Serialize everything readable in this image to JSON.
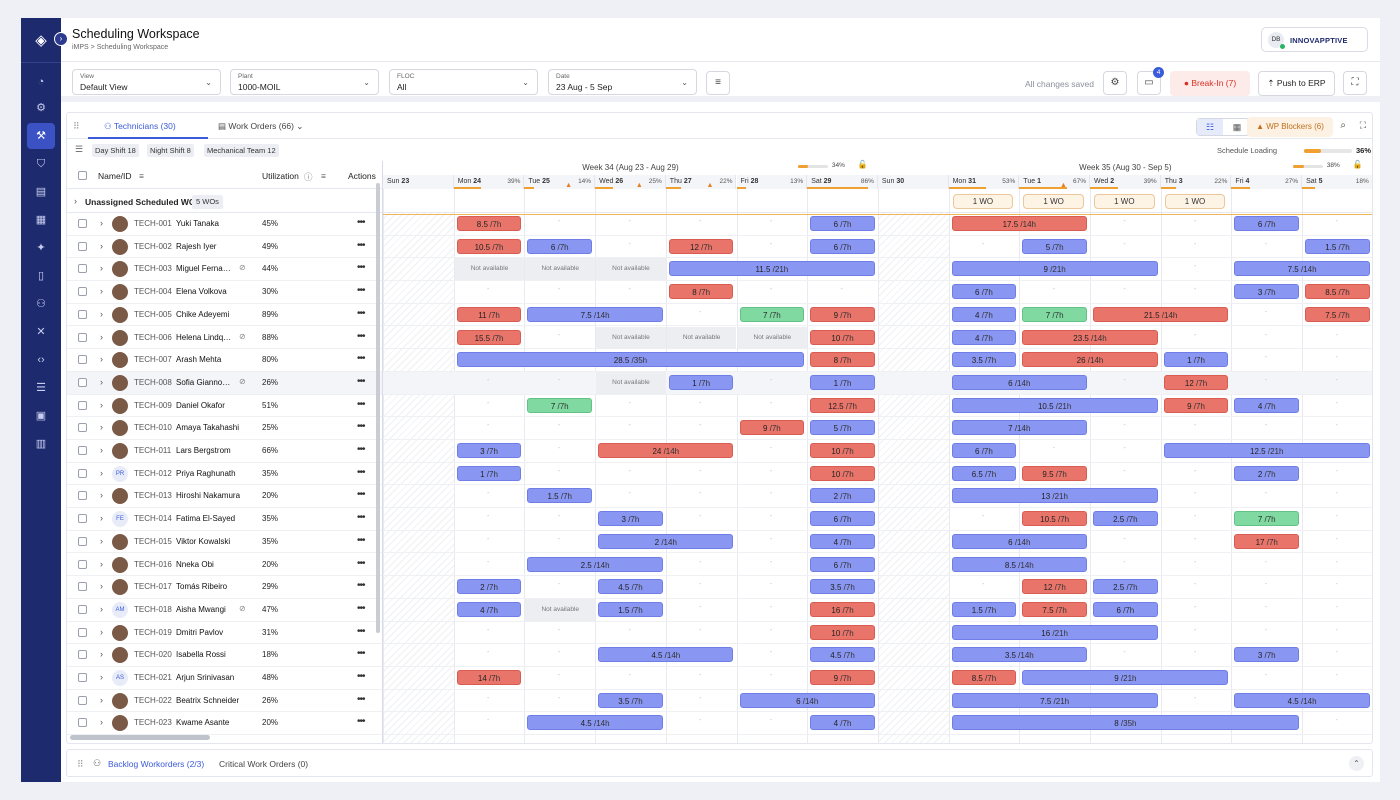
{
  "header": {
    "title": "Scheduling Workspace",
    "breadcrumb": "iMPS > Scheduling Workspace",
    "user_initials": "DB",
    "brand": "INNOVAPPTIVE"
  },
  "filters": {
    "view": {
      "label": "View",
      "value": "Default View"
    },
    "plant": {
      "label": "Plant",
      "value": "1000-MOIL"
    },
    "floc": {
      "label": "FLOC",
      "value": "All"
    },
    "date": {
      "label": "Date",
      "value": "23 Aug - 5 Sep"
    },
    "saved_text": "All changes saved",
    "messages_count": "4",
    "break_in": "Break-In (7)",
    "push_erp": "Push to ERP"
  },
  "tabs": {
    "technicians": "Technicians (30)",
    "work_orders": "Work Orders (66)",
    "wp_blockers": "WP Blockers (6)"
  },
  "chips": [
    "Day Shift 18",
    "Night Shift 8",
    "Mechanical Team 12"
  ],
  "schedule_loading": {
    "label": "Schedule Loading",
    "value": "36%",
    "fraction": 0.36
  },
  "columns": {
    "name": "Name/ID",
    "utilization": "Utilization",
    "actions": "Actions"
  },
  "unassigned": {
    "label": "Unassigned Scheduled WO",
    "badge": "5 WOs"
  },
  "weeks": [
    {
      "label": "Week 34 (Aug 23 - Aug 29)",
      "pct": "34%",
      "fraction": 0.34
    },
    {
      "label": "Week 35 (Aug 30 - Sep 5)",
      "pct": "38%",
      "fraction": 0.38
    }
  ],
  "days": [
    {
      "dow": "Sun",
      "d": "23",
      "pct": "",
      "warn": false,
      "weekend": true,
      "load": 0
    },
    {
      "dow": "Mon",
      "d": "24",
      "pct": "39%",
      "warn": false,
      "weekend": false,
      "load": 0.39
    },
    {
      "dow": "Tue",
      "d": "25",
      "pct": "14%",
      "warn": true,
      "weekend": false,
      "load": 0.14
    },
    {
      "dow": "Wed",
      "d": "26",
      "pct": "25%",
      "warn": true,
      "weekend": false,
      "load": 0.25
    },
    {
      "dow": "Thu",
      "d": "27",
      "pct": "22%",
      "warn": true,
      "weekend": false,
      "load": 0.22
    },
    {
      "dow": "Fri",
      "d": "28",
      "pct": "13%",
      "warn": false,
      "weekend": false,
      "load": 0.13
    },
    {
      "dow": "Sat",
      "d": "29",
      "pct": "86%",
      "warn": false,
      "weekend": false,
      "load": 0.86
    },
    {
      "dow": "Sun",
      "d": "30",
      "pct": "",
      "warn": false,
      "weekend": true,
      "load": 0
    },
    {
      "dow": "Mon",
      "d": "31",
      "pct": "53%",
      "warn": false,
      "weekend": false,
      "load": 0.53
    },
    {
      "dow": "Tue",
      "d": "1",
      "pct": "67%",
      "warn": true,
      "weekend": false,
      "load": 0.67
    },
    {
      "dow": "Wed",
      "d": "2",
      "pct": "39%",
      "warn": false,
      "weekend": false,
      "load": 0.39
    },
    {
      "dow": "Thu",
      "d": "3",
      "pct": "22%",
      "warn": false,
      "weekend": false,
      "load": 0.22
    },
    {
      "dow": "Fri",
      "d": "4",
      "pct": "27%",
      "warn": false,
      "weekend": false,
      "load": 0.27
    },
    {
      "dow": "Sat",
      "d": "5",
      "pct": "18%",
      "warn": false,
      "weekend": false,
      "load": 0.18
    }
  ],
  "unassigned_wo": [
    {
      "day": 8,
      "label": "1 WO"
    },
    {
      "day": 9,
      "label": "1 WO"
    },
    {
      "day": 10,
      "label": "1 WO"
    },
    {
      "day": 11,
      "label": "1 WO"
    }
  ],
  "technicians": [
    {
      "id": "TECH-001",
      "name": "Yuki Tanaka",
      "util": "45%",
      "nocal": false,
      "ini": "",
      "blocks": [
        [
          1,
          1,
          "8.5",
          "/7h",
          "r"
        ],
        [
          6,
          1,
          "6",
          "/7h",
          "b"
        ],
        [
          8,
          2,
          "17.5",
          "/14h",
          "r"
        ],
        [
          12,
          1,
          "6",
          "/7h",
          "b"
        ]
      ]
    },
    {
      "id": "TECH-002",
      "name": "Rajesh Iyer",
      "util": "49%",
      "nocal": false,
      "ini": "",
      "blocks": [
        [
          1,
          1,
          "10.5",
          "/7h",
          "r"
        ],
        [
          2,
          1,
          "6",
          "/7h",
          "b"
        ],
        [
          4,
          1,
          "12",
          "/7h",
          "r"
        ],
        [
          6,
          1,
          "6",
          "/7h",
          "b"
        ],
        [
          9,
          1,
          "5",
          "/7h",
          "b"
        ],
        [
          13,
          1,
          "1.5",
          "/7h",
          "b"
        ]
      ]
    },
    {
      "id": "TECH-003",
      "name": "Miguel Ferna…",
      "util": "44%",
      "nocal": true,
      "ini": "",
      "na": [
        1,
        2,
        3
      ],
      "blocks": [
        [
          4,
          3,
          "11.5",
          "/21h",
          "b"
        ],
        [
          8,
          3,
          "9",
          "/21h",
          "b"
        ],
        [
          12,
          2,
          "7.5",
          "/14h",
          "b"
        ]
      ]
    },
    {
      "id": "TECH-004",
      "name": "Elena Volkova",
      "util": "30%",
      "nocal": false,
      "ini": "",
      "blocks": [
        [
          4,
          1,
          "8",
          "/7h",
          "r"
        ],
        [
          8,
          1,
          "6",
          "/7h",
          "b"
        ],
        [
          12,
          1,
          "3",
          "/7h",
          "b"
        ],
        [
          13,
          1,
          "8.5",
          "/7h",
          "r"
        ]
      ]
    },
    {
      "id": "TECH-005",
      "name": "Chike Adeyemi",
      "util": "89%",
      "nocal": false,
      "ini": "",
      "blocks": [
        [
          1,
          1,
          "11",
          "/7h",
          "r"
        ],
        [
          2,
          2,
          "7.5",
          "/14h",
          "b"
        ],
        [
          5,
          1,
          "7",
          "/7h",
          "g"
        ],
        [
          6,
          1,
          "9",
          "/7h",
          "r"
        ],
        [
          8,
          1,
          "4",
          "/7h",
          "b"
        ],
        [
          9,
          1,
          "7",
          "/7h",
          "g"
        ],
        [
          10,
          2,
          "21.5",
          "/14h",
          "r"
        ],
        [
          13,
          1,
          "7.5",
          "/7h",
          "r"
        ]
      ]
    },
    {
      "id": "TECH-006",
      "name": "Helena Lindq…",
      "util": "88%",
      "nocal": true,
      "ini": "",
      "na": [
        3,
        4,
        5
      ],
      "blocks": [
        [
          1,
          1,
          "15.5",
          "/7h",
          "r"
        ],
        [
          6,
          1,
          "10",
          "/7h",
          "r"
        ],
        [
          8,
          1,
          "4",
          "/7h",
          "b"
        ],
        [
          9,
          2,
          "23.5",
          "/14h",
          "r"
        ]
      ]
    },
    {
      "id": "TECH-007",
      "name": "Arash Mehta",
      "util": "80%",
      "nocal": false,
      "ini": "",
      "blocks": [
        [
          1,
          5,
          "28.5",
          "/35h",
          "b"
        ],
        [
          6,
          1,
          "8",
          "/7h",
          "r"
        ],
        [
          8,
          1,
          "3.5",
          "/7h",
          "b"
        ],
        [
          9,
          2,
          "26",
          "/14h",
          "r"
        ],
        [
          11,
          1,
          "1",
          "/7h",
          "b"
        ]
      ]
    },
    {
      "id": "TECH-008",
      "name": "Sofia Gianno…",
      "util": "26%",
      "nocal": true,
      "ini": "",
      "na": [
        3
      ],
      "hl": true,
      "blocks": [
        [
          4,
          1,
          "1",
          "/7h",
          "b"
        ],
        [
          6,
          1,
          "1",
          "/7h",
          "b"
        ],
        [
          8,
          2,
          "6",
          "/14h",
          "b"
        ],
        [
          11,
          1,
          "12",
          "/7h",
          "r"
        ]
      ]
    },
    {
      "id": "TECH-009",
      "name": "Daniel Okafor",
      "util": "51%",
      "nocal": false,
      "ini": "",
      "blocks": [
        [
          2,
          1,
          "7",
          "/7h",
          "g"
        ],
        [
          6,
          1,
          "12.5",
          "/7h",
          "r"
        ],
        [
          8,
          3,
          "10.5",
          "/21h",
          "b"
        ],
        [
          11,
          1,
          "9",
          "/7h",
          "r"
        ],
        [
          12,
          1,
          "4",
          "/7h",
          "b"
        ]
      ]
    },
    {
      "id": "TECH-010",
      "name": "Amaya Takahashi",
      "util": "25%",
      "nocal": false,
      "ini": "",
      "blocks": [
        [
          5,
          1,
          "9",
          "/7h",
          "r"
        ],
        [
          6,
          1,
          "5",
          "/7h",
          "b"
        ],
        [
          8,
          2,
          "7",
          "/14h",
          "b"
        ]
      ]
    },
    {
      "id": "TECH-011",
      "name": "Lars Bergstrom",
      "util": "66%",
      "nocal": false,
      "ini": "",
      "blocks": [
        [
          1,
          1,
          "3",
          "/7h",
          "b"
        ],
        [
          3,
          2,
          "24",
          "/14h",
          "r"
        ],
        [
          6,
          1,
          "10",
          "/7h",
          "r"
        ],
        [
          8,
          1,
          "6",
          "/7h",
          "b"
        ],
        [
          11,
          3,
          "12.5",
          "/21h",
          "b"
        ]
      ]
    },
    {
      "id": "TECH-012",
      "name": "Priya Raghunath",
      "util": "35%",
      "nocal": false,
      "ini": "PR",
      "blocks": [
        [
          1,
          1,
          "1",
          "/7h",
          "b"
        ],
        [
          6,
          1,
          "10",
          "/7h",
          "r"
        ],
        [
          8,
          1,
          "6.5",
          "/7h",
          "b"
        ],
        [
          9,
          1,
          "9.5",
          "/7h",
          "r"
        ],
        [
          12,
          1,
          "2",
          "/7h",
          "b"
        ]
      ]
    },
    {
      "id": "TECH-013",
      "name": "Hiroshi Nakamura",
      "util": "20%",
      "nocal": false,
      "ini": "",
      "blocks": [
        [
          2,
          1,
          "1.5",
          "/7h",
          "b"
        ],
        [
          6,
          1,
          "2",
          "/7h",
          "b"
        ],
        [
          8,
          3,
          "13",
          "/21h",
          "b"
        ]
      ]
    },
    {
      "id": "TECH-014",
      "name": "Fatima El-Sayed",
      "util": "35%",
      "nocal": false,
      "ini": "FE",
      "blocks": [
        [
          3,
          1,
          "3",
          "/7h",
          "b"
        ],
        [
          6,
          1,
          "6",
          "/7h",
          "b"
        ],
        [
          9,
          1,
          "10.5",
          "/7h",
          "r"
        ],
        [
          10,
          1,
          "2.5",
          "/7h",
          "b"
        ],
        [
          12,
          1,
          "7",
          "/7h",
          "g"
        ]
      ]
    },
    {
      "id": "TECH-015",
      "name": "Viktor Kowalski",
      "util": "35%",
      "nocal": false,
      "ini": "",
      "blocks": [
        [
          3,
          2,
          "2",
          "/14h",
          "b"
        ],
        [
          6,
          1,
          "4",
          "/7h",
          "b"
        ],
        [
          8,
          2,
          "6",
          "/14h",
          "b"
        ],
        [
          12,
          1,
          "17",
          "/7h",
          "r"
        ]
      ]
    },
    {
      "id": "TECH-016",
      "name": "Nneka Obi",
      "util": "20%",
      "nocal": false,
      "ini": "",
      "blocks": [
        [
          2,
          2,
          "2.5",
          "/14h",
          "b"
        ],
        [
          6,
          1,
          "6",
          "/7h",
          "b"
        ],
        [
          8,
          2,
          "8.5",
          "/14h",
          "b"
        ]
      ]
    },
    {
      "id": "TECH-017",
      "name": "Tomás Ribeiro",
      "util": "29%",
      "nocal": false,
      "ini": "",
      "blocks": [
        [
          1,
          1,
          "2",
          "/7h",
          "b"
        ],
        [
          3,
          1,
          "4.5",
          "/7h",
          "b"
        ],
        [
          6,
          1,
          "3.5",
          "/7h",
          "b"
        ],
        [
          9,
          1,
          "12",
          "/7h",
          "r"
        ],
        [
          10,
          1,
          "2.5",
          "/7h",
          "b"
        ]
      ]
    },
    {
      "id": "TECH-018",
      "name": "Aisha Mwangi",
      "util": "47%",
      "nocal": true,
      "ini": "AM",
      "na": [
        2
      ],
      "blocks": [
        [
          1,
          1,
          "4",
          "/7h",
          "b"
        ],
        [
          3,
          1,
          "1.5",
          "/7h",
          "b"
        ],
        [
          6,
          1,
          "16",
          "/7h",
          "r"
        ],
        [
          8,
          1,
          "1.5",
          "/7h",
          "b"
        ],
        [
          9,
          1,
          "7.5",
          "/7h",
          "r"
        ],
        [
          10,
          1,
          "6",
          "/7h",
          "b"
        ]
      ]
    },
    {
      "id": "TECH-019",
      "name": "Dmitri Pavlov",
      "util": "31%",
      "nocal": false,
      "ini": "",
      "blocks": [
        [
          6,
          1,
          "10",
          "/7h",
          "r"
        ],
        [
          8,
          3,
          "16",
          "/21h",
          "b"
        ]
      ]
    },
    {
      "id": "TECH-020",
      "name": "Isabella Rossi",
      "util": "18%",
      "nocal": false,
      "ini": "",
      "blocks": [
        [
          3,
          2,
          "4.5",
          "/14h",
          "b"
        ],
        [
          6,
          1,
          "4.5",
          "/7h",
          "b"
        ],
        [
          8,
          2,
          "3.5",
          "/14h",
          "b"
        ],
        [
          12,
          1,
          "3",
          "/7h",
          "b"
        ]
      ]
    },
    {
      "id": "TECH-021",
      "name": "Arjun Srinivasan",
      "util": "48%",
      "nocal": false,
      "ini": "AS",
      "blocks": [
        [
          1,
          1,
          "14",
          "/7h",
          "r"
        ],
        [
          6,
          1,
          "9",
          "/7h",
          "r"
        ],
        [
          8,
          1,
          "8.5",
          "/7h",
          "r"
        ],
        [
          9,
          3,
          "9",
          "/21h",
          "b"
        ]
      ]
    },
    {
      "id": "TECH-022",
      "name": "Beatrix Schneider",
      "util": "26%",
      "nocal": false,
      "ini": "",
      "blocks": [
        [
          3,
          1,
          "3.5",
          "/7h",
          "b"
        ],
        [
          5,
          2,
          "6",
          "/14h",
          "b"
        ],
        [
          8,
          3,
          "7.5",
          "/21h",
          "b"
        ],
        [
          12,
          2,
          "4.5",
          "/14h",
          "b"
        ]
      ]
    },
    {
      "id": "TECH-023",
      "name": "Kwame Asante",
      "util": "20%",
      "nocal": false,
      "ini": "",
      "blocks": [
        [
          2,
          2,
          "4.5",
          "/14h",
          "b"
        ],
        [
          6,
          1,
          "4",
          "/7h",
          "b"
        ],
        [
          8,
          5,
          "8",
          "/35h",
          "b"
        ]
      ]
    }
  ],
  "footer": {
    "backlog": "Backlog Workorders (2/3)",
    "critical": "Critical Work Orders (0)"
  }
}
